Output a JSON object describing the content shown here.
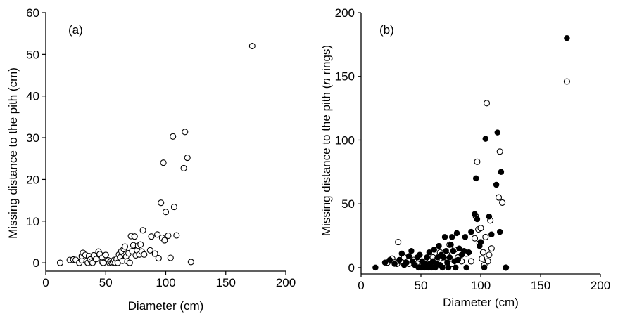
{
  "chart_data": [
    {
      "type": "scatter",
      "panel_label": "(a)",
      "xlabel": "Diameter (cm)",
      "ylabel": "Missing distance to the pith (cm)",
      "xlim": [
        0,
        200
      ],
      "ylim": [
        -2,
        60
      ],
      "xticks": [
        0,
        50,
        100,
        150,
        200
      ],
      "yticks": [
        0,
        10,
        20,
        30,
        40,
        50,
        60
      ],
      "grid": false,
      "series": [
        {
          "marker": "open-circle",
          "points": [
            [
              12,
              0
            ],
            [
              20,
              0.7
            ],
            [
              23,
              0.8
            ],
            [
              25,
              0.7
            ],
            [
              28,
              0
            ],
            [
              30,
              0.6
            ],
            [
              30,
              1.6
            ],
            [
              31,
              2.4
            ],
            [
              33,
              1.9
            ],
            [
              34,
              0.4
            ],
            [
              35,
              0
            ],
            [
              36,
              1.6
            ],
            [
              37,
              0.8
            ],
            [
              38,
              0.3
            ],
            [
              39,
              0
            ],
            [
              40,
              1.8
            ],
            [
              42,
              0.9
            ],
            [
              44,
              2.7
            ],
            [
              45,
              2.1
            ],
            [
              47,
              1.2
            ],
            [
              47,
              0.2
            ],
            [
              48,
              0
            ],
            [
              50,
              1.9
            ],
            [
              52,
              0.6
            ],
            [
              53,
              0
            ],
            [
              54,
              0.3
            ],
            [
              55,
              0
            ],
            [
              56,
              0.2
            ],
            [
              57,
              0.7
            ],
            [
              58,
              0
            ],
            [
              59,
              0.9
            ],
            [
              60,
              0
            ],
            [
              61,
              2.0
            ],
            [
              62,
              1.3
            ],
            [
              63,
              2.8
            ],
            [
              64,
              0.5
            ],
            [
              65,
              3.3
            ],
            [
              66,
              3.9
            ],
            [
              67,
              1.5
            ],
            [
              68,
              0.4
            ],
            [
              69,
              2.3
            ],
            [
              70,
              0
            ],
            [
              71,
              6.4
            ],
            [
              72,
              2.8
            ],
            [
              73,
              4.2
            ],
            [
              74,
              6.3
            ],
            [
              75,
              1.8
            ],
            [
              76,
              3.0
            ],
            [
              77,
              4.1
            ],
            [
              78,
              2.0
            ],
            [
              79,
              4.4
            ],
            [
              80,
              2.7
            ],
            [
              81,
              7.8
            ],
            [
              82,
              2.0
            ],
            [
              87,
              3.0
            ],
            [
              88,
              6.3
            ],
            [
              91,
              2.2
            ],
            [
              93,
              6.8
            ],
            [
              94,
              1.1
            ],
            [
              96,
              14.4
            ],
            [
              97,
              6.0
            ],
            [
              98,
              24.0
            ],
            [
              99,
              5.4
            ],
            [
              100,
              12.2
            ],
            [
              102,
              6.5
            ],
            [
              104,
              1.2
            ],
            [
              106,
              30.3
            ],
            [
              107,
              13.4
            ],
            [
              109,
              6.6
            ],
            [
              115,
              22.7
            ],
            [
              116,
              31.4
            ],
            [
              118,
              25.2
            ],
            [
              121,
              0.2
            ],
            [
              172,
              52.0
            ]
          ]
        }
      ]
    },
    {
      "type": "scatter",
      "panel_label": "(b)",
      "xlabel": "Diameter (cm)",
      "ylabel_parts": [
        "Missing distance to the pith (",
        "n",
        " rings)"
      ],
      "xlim": [
        0,
        200
      ],
      "ylim": [
        -5,
        200
      ],
      "xticks": [
        0,
        50,
        100,
        150,
        200
      ],
      "yticks": [
        0,
        50,
        100,
        150,
        200
      ],
      "grid": false,
      "series": [
        {
          "marker": "open-circle",
          "points": [
            [
              22,
              4
            ],
            [
              26,
              7
            ],
            [
              28,
              4
            ],
            [
              30,
              3
            ],
            [
              31,
              20
            ],
            [
              33,
              5
            ],
            [
              36,
              8
            ],
            [
              40,
              3
            ],
            [
              44,
              6
            ],
            [
              47,
              3
            ],
            [
              50,
              1
            ],
            [
              54,
              4
            ],
            [
              58,
              2
            ],
            [
              60,
              8
            ],
            [
              63,
              6
            ],
            [
              66,
              12
            ],
            [
              69,
              4
            ],
            [
              72,
              10
            ],
            [
              74,
              18
            ],
            [
              76,
              3
            ],
            [
              78,
              14
            ],
            [
              81,
              8
            ],
            [
              84,
              5
            ],
            [
              88,
              11
            ],
            [
              92,
              5
            ],
            [
              95,
              23
            ],
            [
              96,
              40
            ],
            [
              97,
              83
            ],
            [
              98,
              30
            ],
            [
              99,
              19
            ],
            [
              100,
              31
            ],
            [
              101,
              7
            ],
            [
              102,
              12
            ],
            [
              103,
              2
            ],
            [
              104,
              24
            ],
            [
              105,
              129
            ],
            [
              106,
              5
            ],
            [
              107,
              10
            ],
            [
              108,
              37
            ],
            [
              109,
              15
            ],
            [
              115,
              55
            ],
            [
              116,
              91
            ],
            [
              118,
              51
            ],
            [
              121,
              0
            ],
            [
              172,
              146
            ]
          ]
        },
        {
          "marker": "filled-circle",
          "points": [
            [
              12,
              0
            ],
            [
              20,
              4
            ],
            [
              24,
              6
            ],
            [
              28,
              3
            ],
            [
              32,
              6
            ],
            [
              34,
              11
            ],
            [
              36,
              2
            ],
            [
              38,
              4
            ],
            [
              40,
              9
            ],
            [
              42,
              13
            ],
            [
              43,
              5
            ],
            [
              45,
              2
            ],
            [
              47,
              8
            ],
            [
              48,
              0
            ],
            [
              49,
              10
            ],
            [
              50,
              0
            ],
            [
              51,
              5
            ],
            [
              52,
              2
            ],
            [
              53,
              0
            ],
            [
              54,
              3
            ],
            [
              55,
              8
            ],
            [
              56,
              0
            ],
            [
              57,
              12
            ],
            [
              58,
              3
            ],
            [
              59,
              0
            ],
            [
              60,
              5
            ],
            [
              61,
              14
            ],
            [
              62,
              0
            ],
            [
              63,
              3
            ],
            [
              64,
              8
            ],
            [
              65,
              17
            ],
            [
              66,
              2
            ],
            [
              67,
              10
            ],
            [
              68,
              0
            ],
            [
              69,
              8
            ],
            [
              70,
              24
            ],
            [
              71,
              13
            ],
            [
              72,
              4
            ],
            [
              73,
              0
            ],
            [
              74,
              8
            ],
            [
              75,
              18
            ],
            [
              76,
              24
            ],
            [
              77,
              13
            ],
            [
              78,
              5
            ],
            [
              79,
              0
            ],
            [
              80,
              27
            ],
            [
              81,
              6
            ],
            [
              82,
              15
            ],
            [
              84,
              10
            ],
            [
              86,
              13
            ],
            [
              87,
              24
            ],
            [
              88,
              0
            ],
            [
              90,
              12
            ],
            [
              92,
              28
            ],
            [
              95,
              42
            ],
            [
              96,
              70
            ],
            [
              97,
              38
            ],
            [
              99,
              17
            ],
            [
              100,
              20
            ],
            [
              103,
              0
            ],
            [
              104,
              101
            ],
            [
              107,
              40
            ],
            [
              109,
              26
            ],
            [
              113,
              65
            ],
            [
              114,
              106
            ],
            [
              116,
              28
            ],
            [
              117,
              75
            ],
            [
              121,
              0
            ],
            [
              172,
              180
            ]
          ]
        }
      ]
    }
  ]
}
